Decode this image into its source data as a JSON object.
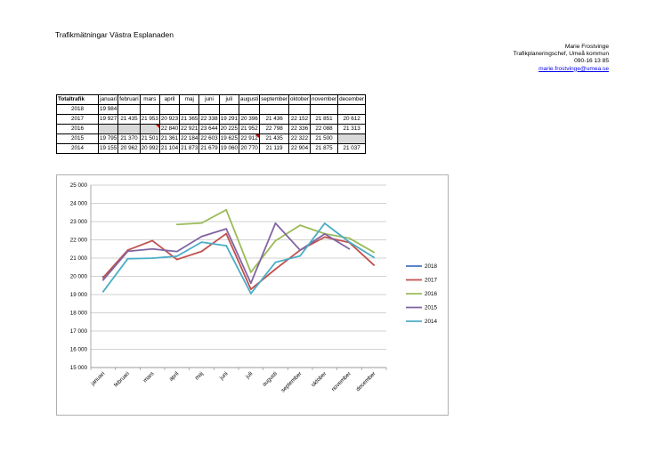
{
  "page": {
    "title": "Trafikmätningar Västra Esplanaden"
  },
  "contact": {
    "name": "Marie Frostvinge",
    "role": "Trafikplaneringschef, Umeå kommun",
    "phone": "090-16 13 85",
    "email": "marie.frostvinge@umea.se"
  },
  "table": {
    "columns": [
      "Totaltrafik",
      "januari",
      "februari",
      "mars",
      "april",
      "maj",
      "juni",
      "juli",
      "augusti",
      "september",
      "oktober",
      "november",
      "december"
    ],
    "rows": [
      {
        "year": "2018",
        "cells": [
          "19 984",
          "",
          "",
          "",
          "",
          "",
          "",
          "",
          "",
          "",
          "",
          ""
        ]
      },
      {
        "year": "2017",
        "cells": [
          "19 927",
          "21 435",
          "21 953",
          "20 923",
          "21 365",
          "22 338",
          "19 291",
          "20 396",
          "21 436",
          "22 152",
          "21 851",
          "20 612"
        ]
      },
      {
        "year": "2016",
        "cells": [
          "",
          "",
          "",
          "22 840",
          "22 921",
          "23 644",
          "20 225",
          "21 952",
          "22 798",
          "22 336",
          "22 088",
          "21 313"
        ]
      },
      {
        "year": "2015",
        "cells": [
          "19 795",
          "21 370",
          "21 501",
          "21 361",
          "22 184",
          "22 603",
          "19 625",
          "22 912",
          "21 435",
          "22 322",
          "21 500",
          ""
        ]
      },
      {
        "year": "2014",
        "cells": [
          "19 155",
          "20 962",
          "20 992",
          "21 104",
          "21 873",
          "21 679",
          "19 060",
          "20 770",
          "21 119",
          "22 904",
          "21 875",
          "21 037"
        ]
      }
    ]
  },
  "chart_data": {
    "type": "line",
    "title": "",
    "xlabel": "",
    "ylabel": "",
    "categories": [
      "januari",
      "februari",
      "mars",
      "april",
      "maj",
      "juni",
      "juli",
      "augusti",
      "september",
      "oktober",
      "november",
      "december"
    ],
    "ylim": [
      15000,
      25000
    ],
    "yticks": [
      15000,
      16000,
      17000,
      18000,
      19000,
      20000,
      21000,
      22000,
      23000,
      24000,
      25000
    ],
    "ytick_labels": [
      "15 000",
      "16 000",
      "17 000",
      "18 000",
      "19 000",
      "20 000",
      "21 000",
      "22 000",
      "23 000",
      "24 000",
      "25 000"
    ],
    "grid": "horizontal",
    "legend": "right",
    "series": [
      {
        "name": "2018",
        "color": "#4472c4",
        "values": [
          19984,
          null,
          null,
          null,
          null,
          null,
          null,
          null,
          null,
          null,
          null,
          null
        ]
      },
      {
        "name": "2017",
        "color": "#c0504d",
        "values": [
          19927,
          21435,
          21953,
          20923,
          21365,
          22338,
          19291,
          20396,
          21436,
          22152,
          21851,
          20612
        ]
      },
      {
        "name": "2016",
        "color": "#9bbb59",
        "values": [
          null,
          null,
          null,
          22840,
          22921,
          23644,
          20225,
          21952,
          22798,
          22336,
          22088,
          21313
        ]
      },
      {
        "name": "2015",
        "color": "#8064a2",
        "values": [
          19795,
          21370,
          21501,
          21361,
          22184,
          22603,
          19625,
          22912,
          21435,
          22322,
          21500,
          null
        ]
      },
      {
        "name": "2014",
        "color": "#4bacc6",
        "values": [
          19155,
          20962,
          20992,
          21104,
          21873,
          21679,
          19060,
          20770,
          21119,
          22904,
          21875,
          21037
        ]
      }
    ]
  }
}
